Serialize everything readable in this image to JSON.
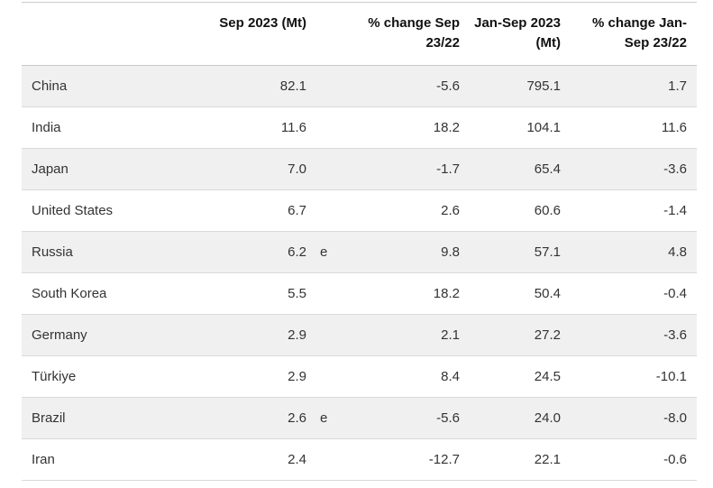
{
  "table": {
    "headers": [
      {
        "line1": "Sep 2023 (Mt)",
        "line2": ""
      },
      {
        "line1": "% change Sep",
        "line2": "23/22"
      },
      {
        "line1": "Jan-Sep 2023",
        "line2": "(Mt)"
      },
      {
        "line1": "% change Jan-",
        "line2": "Sep 23/22"
      }
    ],
    "rows": [
      {
        "country": "China",
        "sep_2023": "82.1",
        "flag": "",
        "pct_change_sep": "-5.6",
        "jan_sep_2023": "795.1",
        "pct_change_jan_sep": "1.7"
      },
      {
        "country": "India",
        "sep_2023": "11.6",
        "flag": "",
        "pct_change_sep": "18.2",
        "jan_sep_2023": "104.1",
        "pct_change_jan_sep": "11.6"
      },
      {
        "country": "Japan",
        "sep_2023": "7.0",
        "flag": "",
        "pct_change_sep": "-1.7",
        "jan_sep_2023": "65.4",
        "pct_change_jan_sep": "-3.6"
      },
      {
        "country": "United States",
        "sep_2023": "6.7",
        "flag": "",
        "pct_change_sep": "2.6",
        "jan_sep_2023": "60.6",
        "pct_change_jan_sep": "-1.4"
      },
      {
        "country": "Russia",
        "sep_2023": "6.2",
        "flag": "e",
        "pct_change_sep": "9.8",
        "jan_sep_2023": "57.1",
        "pct_change_jan_sep": "4.8"
      },
      {
        "country": "South Korea",
        "sep_2023": "5.5",
        "flag": "",
        "pct_change_sep": "18.2",
        "jan_sep_2023": "50.4",
        "pct_change_jan_sep": "-0.4"
      },
      {
        "country": "Germany",
        "sep_2023": "2.9",
        "flag": "",
        "pct_change_sep": "2.1",
        "jan_sep_2023": "27.2",
        "pct_change_jan_sep": "-3.6"
      },
      {
        "country": "Türkiye",
        "sep_2023": "2.9",
        "flag": "",
        "pct_change_sep": "8.4",
        "jan_sep_2023": "24.5",
        "pct_change_jan_sep": "-10.1"
      },
      {
        "country": "Brazil",
        "sep_2023": "2.6",
        "flag": "e",
        "pct_change_sep": "-5.6",
        "jan_sep_2023": "24.0",
        "pct_change_jan_sep": "-8.0"
      },
      {
        "country": "Iran",
        "sep_2023": "2.4",
        "flag": "",
        "pct_change_sep": "-12.7",
        "jan_sep_2023": "22.1",
        "pct_change_jan_sep": "-0.6"
      }
    ]
  },
  "colors": {
    "zebra_row_bg": "#f0f0f0",
    "row_border": "#d9d9d9",
    "header_border": "#c8c8c8",
    "top_border": "#cccccc",
    "body_text": "#333333",
    "header_text": "#111111"
  },
  "chart_data": {
    "type": "table",
    "columns": [
      "",
      "Sep 2023 (Mt)",
      "% change Sep 23/22",
      "Jan-Sep 2023 (Mt)",
      "% change Jan-Sep 23/22"
    ],
    "rows": [
      [
        "China",
        82.1,
        -5.6,
        795.1,
        1.7
      ],
      [
        "India",
        11.6,
        18.2,
        104.1,
        11.6
      ],
      [
        "Japan",
        7.0,
        -1.7,
        65.4,
        -3.6
      ],
      [
        "United States",
        6.7,
        2.6,
        60.6,
        -1.4
      ],
      [
        "Russia",
        6.2,
        9.8,
        57.1,
        4.8
      ],
      [
        "South Korea",
        5.5,
        18.2,
        50.4,
        -0.4
      ],
      [
        "Germany",
        2.9,
        2.1,
        27.2,
        -3.6
      ],
      [
        "Türkiye",
        2.9,
        8.4,
        24.5,
        -10.1
      ],
      [
        "Brazil",
        2.6,
        -5.6,
        24.0,
        -8.0
      ],
      [
        "Iran",
        2.4,
        -12.7,
        22.1,
        -0.6
      ]
    ],
    "estimate_flagged_rows": [
      "Russia",
      "Brazil"
    ],
    "estimate_flag_symbol": "e",
    "layout": "zebra-striped table, first column left-aligned, numeric columns right-aligned, headers bold right-aligned"
  }
}
